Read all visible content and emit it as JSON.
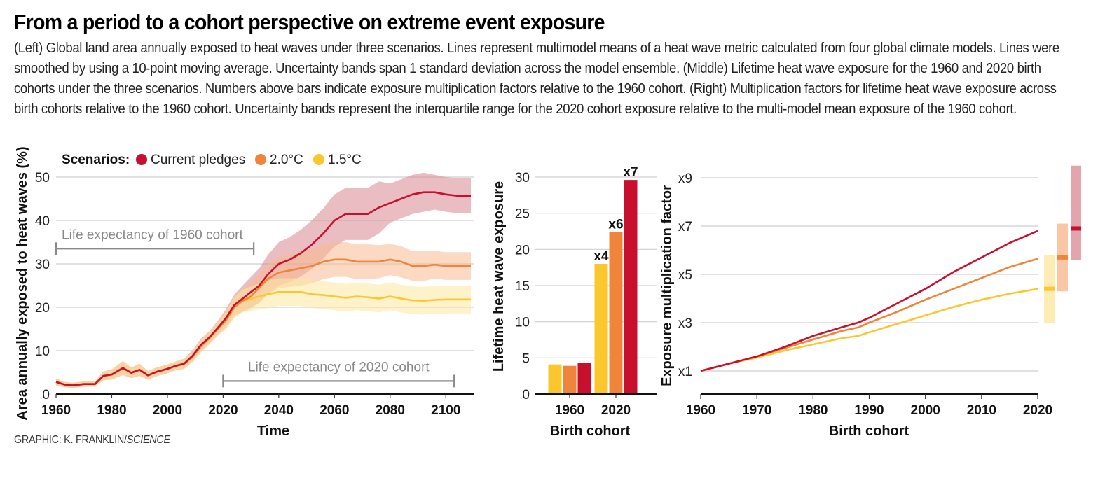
{
  "header": {
    "title": "From a period to a cohort perspective on extreme event exposure",
    "caption": "(Left) Global land area annually exposed to heat waves under three scenarios. Lines represent multimodel means of a heat wave metric calculated from four global climate models. Lines were smoothed by using a 10-point moving average. Uncertainty bands span 1 standard deviation across the model ensemble. (Middle) Lifetime heat wave exposure for the 1960 and 2020 birth cohorts under the three scenarios. Numbers above bars indicate exposure multiplication factors relative to the 1960 cohort. (Right) Multiplication factors for lifetime heat wave exposure across birth cohorts relative to the 1960 cohort. Uncertainty bands represent the interquartile range for the 2020 cohort exposure relative to the multi-model mean exposure of the 1960 cohort."
  },
  "credit": {
    "prefix": "GRAPHIC: K. FRANKLIN/",
    "source": "SCIENCE"
  },
  "legend": {
    "title": "Scenarios:",
    "items": [
      {
        "label": "Current pledges",
        "color": "#c8102e"
      },
      {
        "label": "2.0°C",
        "color": "#f0843a"
      },
      {
        "label": "1.5°C",
        "color": "#fcc72e"
      }
    ]
  },
  "colors": {
    "current": "#c8102e",
    "c20": "#f0843a",
    "c15": "#fcc72e",
    "band_current": "#d9868f",
    "band_c20": "#f7b98f",
    "band_c15": "#fde7a0",
    "grid": "#cfcfcf",
    "annotation": "#888888"
  },
  "chart_data": [
    {
      "type": "line",
      "title": "Global land area annually exposed to heat waves",
      "xlabel": "Time",
      "ylabel": "Area annually exposed to heat waves (%)",
      "xlim": [
        1960,
        2110
      ],
      "ylim": [
        0,
        50
      ],
      "xticks": [
        1960,
        1980,
        2000,
        2020,
        2040,
        2060,
        2080,
        2100
      ],
      "yticks": [
        0,
        10,
        20,
        30,
        40,
        50
      ],
      "grid": true,
      "legend_position": "top-left",
      "annotations": [
        {
          "label": "Life expectancy of 1960 cohort",
          "from": 1960,
          "to": 2031,
          "y": 33.5
        },
        {
          "label": "Life expectancy of 2020 cohort",
          "from": 2020,
          "to": 2103,
          "y": 3
        }
      ],
      "x": [
        1960,
        1963,
        1966,
        1970,
        1974,
        1977,
        1980,
        1984,
        1987,
        1990,
        1993,
        1996,
        2000,
        2003,
        2006,
        2009,
        2012,
        2015,
        2018,
        2021,
        2024,
        2027,
        2030,
        2033,
        2036,
        2040,
        2044,
        2048,
        2052,
        2056,
        2060,
        2064,
        2068,
        2072,
        2076,
        2080,
        2084,
        2088,
        2092,
        2096,
        2100,
        2104,
        2109
      ],
      "series": [
        {
          "name": "Current pledges",
          "values": [
            2.8,
            2.2,
            2.0,
            2.3,
            2.3,
            4.2,
            4.5,
            6.0,
            4.9,
            5.6,
            4.3,
            5.1,
            5.8,
            6.5,
            7.0,
            8.8,
            11.3,
            13.0,
            15.2,
            17.5,
            20.5,
            22.0,
            23.5,
            25.0,
            27.5,
            30.0,
            31.0,
            32.5,
            34.5,
            37.0,
            40.0,
            41.5,
            41.5,
            41.5,
            43.0,
            44.0,
            45.0,
            46.0,
            46.5,
            46.5,
            46.0,
            45.7,
            45.7
          ],
          "band": [
            0.8,
            0.6,
            0.6,
            0.6,
            0.6,
            1.0,
            1.2,
            1.6,
            1.2,
            1.4,
            1.0,
            1.0,
            1.0,
            1.0,
            1.2,
            1.2,
            1.4,
            1.4,
            1.6,
            2.0,
            2.4,
            3.0,
            3.5,
            4.0,
            4.5,
            5.0,
            5.2,
            5.4,
            5.6,
            5.8,
            6.0,
            6.0,
            6.0,
            6.0,
            6.0,
            4.5,
            4.5,
            4.5,
            4.5,
            4.0,
            4.0,
            4.0,
            4.0
          ]
        },
        {
          "name": "2.0°C",
          "values": [
            2.8,
            2.2,
            2.0,
            2.3,
            2.3,
            4.2,
            4.5,
            6.0,
            4.9,
            5.6,
            4.3,
            5.1,
            5.8,
            6.5,
            7.0,
            8.5,
            11.0,
            12.8,
            15.0,
            17.0,
            20.0,
            21.5,
            22.5,
            24.5,
            26.5,
            28.0,
            28.5,
            29.0,
            29.5,
            30.5,
            31.0,
            31.0,
            30.5,
            30.5,
            30.5,
            31.0,
            30.5,
            29.5,
            29.5,
            29.8,
            29.5,
            29.5,
            29.5
          ],
          "band": [
            0.8,
            0.6,
            0.6,
            0.6,
            0.6,
            1.0,
            1.2,
            1.6,
            1.2,
            1.4,
            1.0,
            1.0,
            1.0,
            1.0,
            1.2,
            1.2,
            1.4,
            1.4,
            1.6,
            2.0,
            2.4,
            2.6,
            3.0,
            3.2,
            3.5,
            3.6,
            3.8,
            4.0,
            4.0,
            4.0,
            4.0,
            4.0,
            4.0,
            4.0,
            3.8,
            3.6,
            3.6,
            3.4,
            3.4,
            3.2,
            3.2,
            3.2,
            3.2
          ]
        },
        {
          "name": "1.5°C",
          "values": [
            2.8,
            2.2,
            2.0,
            2.3,
            2.3,
            4.2,
            4.5,
            6.0,
            4.9,
            5.6,
            4.3,
            5.1,
            5.8,
            6.5,
            7.0,
            8.5,
            11.0,
            12.8,
            15.0,
            17.0,
            20.0,
            21.5,
            22.0,
            22.5,
            23.0,
            23.5,
            23.5,
            23.5,
            23.0,
            22.8,
            22.5,
            22.2,
            22.5,
            22.3,
            22.0,
            22.5,
            22.0,
            21.6,
            21.5,
            21.7,
            21.8,
            21.8,
            21.8
          ],
          "band": [
            0.8,
            0.6,
            0.6,
            0.6,
            0.6,
            1.0,
            1.2,
            1.6,
            1.2,
            1.4,
            1.0,
            1.0,
            1.0,
            1.0,
            1.2,
            1.2,
            1.4,
            1.4,
            1.6,
            2.0,
            2.4,
            2.6,
            2.8,
            3.0,
            3.2,
            3.2,
            3.2,
            3.2,
            3.2,
            3.2,
            3.2,
            3.2,
            3.2,
            3.2,
            3.2,
            3.2,
            3.2,
            3.2,
            3.2,
            3.2,
            3.2,
            3.2,
            3.2
          ]
        }
      ]
    },
    {
      "type": "bar",
      "title": "Lifetime heat wave exposure",
      "xlabel": "Birth cohort",
      "ylabel": "Lifetime heat wave exposure",
      "categories": [
        "1960",
        "2020"
      ],
      "ylim": [
        0,
        30
      ],
      "yticks": [
        0,
        5,
        10,
        15,
        20,
        25,
        30
      ],
      "grid": true,
      "series": [
        {
          "name": "1.5°C",
          "values": [
            4.1,
            18.0
          ],
          "labels": [
            "",
            "x4"
          ]
        },
        {
          "name": "2.0°C",
          "values": [
            3.9,
            22.4
          ],
          "labels": [
            "",
            "x6"
          ]
        },
        {
          "name": "Current pledges",
          "values": [
            4.3,
            29.6
          ],
          "labels": [
            "",
            "x7"
          ]
        }
      ]
    },
    {
      "type": "line",
      "title": "Exposure multiplication factor across birth cohorts",
      "xlabel": "Birth cohort",
      "ylabel": "Exposure multiplication factor",
      "xlim": [
        1960,
        2020
      ],
      "ylim": [
        0,
        10
      ],
      "xticks": [
        1960,
        1970,
        1980,
        1990,
        2000,
        2010,
        2020
      ],
      "yticks": [
        1,
        3,
        5,
        7,
        9
      ],
      "ytick_labels": [
        "x1",
        "x3",
        "x5",
        "x7",
        "x9"
      ],
      "grid": true,
      "x": [
        1960,
        1965,
        1970,
        1975,
        1980,
        1985,
        1988,
        1990,
        1995,
        2000,
        2005,
        2010,
        2015,
        2020
      ],
      "series": [
        {
          "name": "Current pledges",
          "values": [
            1.0,
            1.3,
            1.6,
            2.0,
            2.45,
            2.8,
            3.0,
            3.2,
            3.8,
            4.4,
            5.1,
            5.7,
            6.3,
            6.8
          ]
        },
        {
          "name": "2.0°C",
          "values": [
            1.0,
            1.3,
            1.6,
            1.95,
            2.3,
            2.65,
            2.8,
            3.0,
            3.45,
            3.95,
            4.4,
            4.85,
            5.3,
            5.65
          ]
        },
        {
          "name": "1.5°C",
          "values": [
            1.0,
            1.3,
            1.55,
            1.85,
            2.1,
            2.35,
            2.45,
            2.6,
            2.95,
            3.3,
            3.65,
            3.95,
            4.2,
            4.4
          ]
        }
      ],
      "uncertainty_2020": [
        {
          "name": "1.5°C",
          "median": 4.4,
          "low": 3.0,
          "high": 5.8
        },
        {
          "name": "2.0°C",
          "median": 5.7,
          "low": 4.3,
          "high": 7.1
        },
        {
          "name": "Current pledges",
          "median": 6.9,
          "low": 5.6,
          "high": 9.5
        }
      ]
    }
  ]
}
